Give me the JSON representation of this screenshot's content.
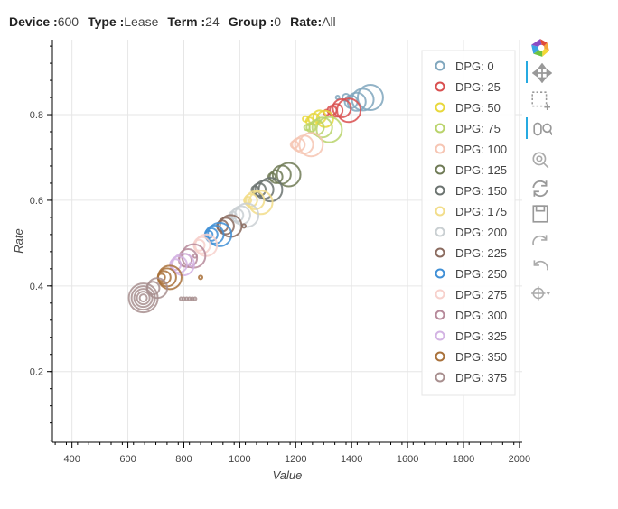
{
  "filters": [
    {
      "label": "Device :",
      "value": "600"
    },
    {
      "label": "Type :",
      "value": "Lease"
    },
    {
      "label": "Term :",
      "value": "24"
    },
    {
      "label": "Group :",
      "value": "0"
    },
    {
      "label": "Rate:",
      "value": "All"
    }
  ],
  "toolbar": {
    "tools": [
      {
        "name": "bokeh-logo-icon",
        "interactable": false,
        "active": false
      },
      {
        "name": "pan-icon",
        "interactable": true,
        "active": true
      },
      {
        "name": "box-zoom-icon",
        "interactable": true,
        "active": false
      },
      {
        "name": "wheel-zoom-icon",
        "interactable": true,
        "active": true
      },
      {
        "name": "zoom-in-icon",
        "interactable": true,
        "active": false
      },
      {
        "name": "reset-icon",
        "interactable": true,
        "active": false
      },
      {
        "name": "save-icon",
        "interactable": true,
        "active": false
      },
      {
        "name": "redo-icon",
        "interactable": true,
        "active": false
      },
      {
        "name": "undo-icon",
        "interactable": true,
        "active": false
      },
      {
        "name": "crosshair-icon",
        "interactable": true,
        "active": false
      }
    ]
  },
  "chart_data": {
    "type": "scatter",
    "title": "",
    "xlabel": "Value",
    "ylabel": "Rate",
    "xlim": [
      330,
      2010
    ],
    "ylim": [
      0.035,
      0.975
    ],
    "xticks": [
      400,
      600,
      800,
      1000,
      1200,
      1400,
      1600,
      1800,
      2000
    ],
    "yticks": [
      0.2,
      0.4,
      0.6,
      0.8
    ],
    "grid": true,
    "legend_position": "top-right",
    "marker": "circle (hollow)",
    "series": [
      {
        "name": "DPG: 0",
        "color": "#7fa6bd",
        "points": [
          {
            "x": 1467,
            "y": 0.84,
            "size": 28
          },
          {
            "x": 1440,
            "y": 0.835,
            "size": 24
          },
          {
            "x": 1418,
            "y": 0.83,
            "size": 20
          },
          {
            "x": 1398,
            "y": 0.83,
            "size": 14
          },
          {
            "x": 1380,
            "y": 0.84,
            "size": 8
          },
          {
            "x": 1350,
            "y": 0.84,
            "size": 4
          }
        ]
      },
      {
        "name": "DPG: 25",
        "color": "#d94f4f",
        "points": [
          {
            "x": 1390,
            "y": 0.81,
            "size": 26
          },
          {
            "x": 1365,
            "y": 0.815,
            "size": 20
          },
          {
            "x": 1345,
            "y": 0.81,
            "size": 14
          },
          {
            "x": 1330,
            "y": 0.81,
            "size": 10
          },
          {
            "x": 1310,
            "y": 0.805,
            "size": 6
          }
        ]
      },
      {
        "name": "DPG: 50",
        "color": "#e8d83b",
        "points": [
          {
            "x": 1305,
            "y": 0.79,
            "size": 18
          },
          {
            "x": 1285,
            "y": 0.795,
            "size": 14
          },
          {
            "x": 1265,
            "y": 0.79,
            "size": 12
          },
          {
            "x": 1250,
            "y": 0.785,
            "size": 8
          },
          {
            "x": 1235,
            "y": 0.79,
            "size": 6
          }
        ]
      },
      {
        "name": "DPG: 75",
        "color": "#b9d36b",
        "points": [
          {
            "x": 1320,
            "y": 0.765,
            "size": 28
          },
          {
            "x": 1295,
            "y": 0.77,
            "size": 22
          },
          {
            "x": 1275,
            "y": 0.77,
            "size": 16
          },
          {
            "x": 1255,
            "y": 0.77,
            "size": 10
          },
          {
            "x": 1240,
            "y": 0.77,
            "size": 6
          }
        ]
      },
      {
        "name": "DPG: 100",
        "color": "#f6c5b3",
        "points": [
          {
            "x": 1255,
            "y": 0.73,
            "size": 26
          },
          {
            "x": 1230,
            "y": 0.73,
            "size": 20
          },
          {
            "x": 1210,
            "y": 0.73,
            "size": 14
          },
          {
            "x": 1195,
            "y": 0.73,
            "size": 8
          }
        ]
      },
      {
        "name": "DPG: 125",
        "color": "#6e7a55",
        "points": [
          {
            "x": 1175,
            "y": 0.66,
            "size": 26
          },
          {
            "x": 1150,
            "y": 0.66,
            "size": 20
          },
          {
            "x": 1130,
            "y": 0.655,
            "size": 14
          },
          {
            "x": 1115,
            "y": 0.655,
            "size": 8
          }
        ]
      },
      {
        "name": "DPG: 150",
        "color": "#6b7370",
        "points": [
          {
            "x": 1110,
            "y": 0.625,
            "size": 26
          },
          {
            "x": 1088,
            "y": 0.625,
            "size": 20
          },
          {
            "x": 1070,
            "y": 0.625,
            "size": 14
          },
          {
            "x": 1055,
            "y": 0.625,
            "size": 8
          }
        ]
      },
      {
        "name": "DPG: 175",
        "color": "#f2dd8a",
        "points": [
          {
            "x": 1075,
            "y": 0.595,
            "size": 26
          },
          {
            "x": 1055,
            "y": 0.6,
            "size": 20
          },
          {
            "x": 1040,
            "y": 0.6,
            "size": 14
          },
          {
            "x": 1028,
            "y": 0.6,
            "size": 8
          }
        ]
      },
      {
        "name": "DPG: 200",
        "color": "#c9cfd2",
        "points": [
          {
            "x": 1025,
            "y": 0.565,
            "size": 26
          },
          {
            "x": 1005,
            "y": 0.565,
            "size": 20
          },
          {
            "x": 990,
            "y": 0.565,
            "size": 14
          },
          {
            "x": 975,
            "y": 0.565,
            "size": 8
          }
        ]
      },
      {
        "name": "DPG: 225",
        "color": "#8a6a5e",
        "points": [
          {
            "x": 968,
            "y": 0.54,
            "size": 24
          },
          {
            "x": 950,
            "y": 0.54,
            "size": 18
          },
          {
            "x": 938,
            "y": 0.54,
            "size": 12
          },
          {
            "x": 1015,
            "y": 0.54,
            "size": 4
          }
        ]
      },
      {
        "name": "DPG: 250",
        "color": "#3f8fd6",
        "points": [
          {
            "x": 928,
            "y": 0.52,
            "size": 26
          },
          {
            "x": 910,
            "y": 0.52,
            "size": 20
          },
          {
            "x": 898,
            "y": 0.52,
            "size": 14
          },
          {
            "x": 890,
            "y": 0.52,
            "size": 8
          }
        ]
      },
      {
        "name": "DPG: 275",
        "color": "#f7d1cc",
        "points": [
          {
            "x": 880,
            "y": 0.495,
            "size": 24
          },
          {
            "x": 865,
            "y": 0.495,
            "size": 18
          },
          {
            "x": 855,
            "y": 0.495,
            "size": 12
          }
        ]
      },
      {
        "name": "DPG: 300",
        "color": "#b6899a",
        "points": [
          {
            "x": 835,
            "y": 0.47,
            "size": 26
          },
          {
            "x": 815,
            "y": 0.465,
            "size": 20
          },
          {
            "x": 805,
            "y": 0.46,
            "size": 14
          },
          {
            "x": 840,
            "y": 0.47,
            "size": 4
          }
        ]
      },
      {
        "name": "DPG: 325",
        "color": "#d3b3e3",
        "points": [
          {
            "x": 798,
            "y": 0.45,
            "size": 24
          },
          {
            "x": 782,
            "y": 0.45,
            "size": 18
          },
          {
            "x": 770,
            "y": 0.45,
            "size": 12
          },
          {
            "x": 825,
            "y": 0.45,
            "size": 4
          }
        ]
      },
      {
        "name": "DPG: 350",
        "color": "#a9713a",
        "points": [
          {
            "x": 750,
            "y": 0.42,
            "size": 26
          },
          {
            "x": 740,
            "y": 0.42,
            "size": 20
          },
          {
            "x": 730,
            "y": 0.42,
            "size": 14
          },
          {
            "x": 720,
            "y": 0.42,
            "size": 8
          },
          {
            "x": 860,
            "y": 0.42,
            "size": 4
          }
        ]
      },
      {
        "name": "DPG: 375",
        "color": "#a88f8f",
        "points": [
          {
            "x": 655,
            "y": 0.372,
            "size": 32
          },
          {
            "x": 655,
            "y": 0.372,
            "size": 26
          },
          {
            "x": 655,
            "y": 0.372,
            "size": 20
          },
          {
            "x": 655,
            "y": 0.372,
            "size": 14
          },
          {
            "x": 655,
            "y": 0.372,
            "size": 8
          },
          {
            "x": 705,
            "y": 0.395,
            "size": 22
          },
          {
            "x": 690,
            "y": 0.395,
            "size": 14
          },
          {
            "x": 790,
            "y": 0.37,
            "size": 3
          },
          {
            "x": 800,
            "y": 0.37,
            "size": 3
          },
          {
            "x": 810,
            "y": 0.37,
            "size": 3
          },
          {
            "x": 820,
            "y": 0.37,
            "size": 3
          },
          {
            "x": 830,
            "y": 0.37,
            "size": 3
          },
          {
            "x": 840,
            "y": 0.37,
            "size": 3
          }
        ]
      }
    ]
  }
}
